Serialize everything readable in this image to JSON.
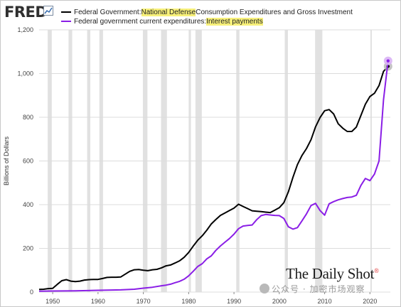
{
  "brand": {
    "logo_text": "FRED",
    "logo_icon": "chart-line-icon",
    "watermark_text": "公众号 · 加密市场观察",
    "watermark_icon": "wechat-icon",
    "publisher_text": "The Daily Shot",
    "publisher_mark": "®"
  },
  "legend": [
    {
      "prefix": "Federal Government: ",
      "highlight": "National Defense",
      "suffix": " Consumption Expenditures and Gross Investment",
      "color": "#000000"
    },
    {
      "prefix": "Federal government current expenditures: ",
      "highlight": "Interest payments",
      "suffix": "",
      "color": "#8a1ee6"
    }
  ],
  "chart_data": {
    "type": "line",
    "title": "",
    "xlabel": "",
    "ylabel": "Billions of Dollars",
    "xlim": [
      1947,
      2024.5
    ],
    "ylim": [
      0,
      1200
    ],
    "x_ticks": [
      1950,
      1960,
      1970,
      1980,
      1990,
      2000,
      2010,
      2020
    ],
    "y_ticks": [
      0,
      200,
      400,
      600,
      800,
      1000,
      1200
    ],
    "y_tick_labels": [
      "0",
      "200",
      "400",
      "600",
      "800",
      "1,000",
      "1,200"
    ],
    "grid": "horizontal",
    "legend_position": "top-left",
    "recessions": [
      [
        1948.9,
        1949.8
      ],
      [
        1953.5,
        1954.3
      ],
      [
        1957.6,
        1958.3
      ],
      [
        1960.3,
        1961.1
      ],
      [
        1969.9,
        1970.9
      ],
      [
        1973.9,
        1975.2
      ],
      [
        1980.0,
        1980.5
      ],
      [
        1981.5,
        1982.9
      ],
      [
        1990.5,
        1991.2
      ],
      [
        2001.2,
        2001.9
      ],
      [
        2007.9,
        2009.5
      ],
      [
        2020.1,
        2020.4
      ]
    ],
    "series": [
      {
        "name": "Federal Government: National Defense Consumption Expenditures and Gross Investment",
        "color": "#000000",
        "points": [
          [
            1947,
            12
          ],
          [
            1948,
            13
          ],
          [
            1949,
            16
          ],
          [
            1950,
            17
          ],
          [
            1951,
            35
          ],
          [
            1952,
            52
          ],
          [
            1953,
            57
          ],
          [
            1954,
            50
          ],
          [
            1955,
            48
          ],
          [
            1956,
            50
          ],
          [
            1957,
            55
          ],
          [
            1958,
            57
          ],
          [
            1959,
            58
          ],
          [
            1960,
            58
          ],
          [
            1961,
            62
          ],
          [
            1962,
            67
          ],
          [
            1963,
            68
          ],
          [
            1964,
            68
          ],
          [
            1965,
            69
          ],
          [
            1966,
            82
          ],
          [
            1967,
            95
          ],
          [
            1968,
            102
          ],
          [
            1969,
            103
          ],
          [
            1970,
            100
          ],
          [
            1971,
            98
          ],
          [
            1972,
            102
          ],
          [
            1973,
            104
          ],
          [
            1974,
            111
          ],
          [
            1975,
            120
          ],
          [
            1976,
            124
          ],
          [
            1977,
            133
          ],
          [
            1978,
            143
          ],
          [
            1979,
            159
          ],
          [
            1980,
            181
          ],
          [
            1981,
            210
          ],
          [
            1982,
            237
          ],
          [
            1983,
            258
          ],
          [
            1984,
            283
          ],
          [
            1985,
            312
          ],
          [
            1986,
            332
          ],
          [
            1987,
            351
          ],
          [
            1988,
            362
          ],
          [
            1989,
            373
          ],
          [
            1990,
            384
          ],
          [
            1991,
            402
          ],
          [
            1992,
            392
          ],
          [
            1993,
            382
          ],
          [
            1994,
            372
          ],
          [
            1995,
            370
          ],
          [
            1996,
            368
          ],
          [
            1997,
            366
          ],
          [
            1998,
            364
          ],
          [
            1999,
            375
          ],
          [
            2000,
            386
          ],
          [
            2001,
            409
          ],
          [
            2002,
            459
          ],
          [
            2003,
            525
          ],
          [
            2004,
            583
          ],
          [
            2005,
            625
          ],
          [
            2006,
            657
          ],
          [
            2007,
            698
          ],
          [
            2008,
            756
          ],
          [
            2009,
            799
          ],
          [
            2010,
            830
          ],
          [
            2011,
            835
          ],
          [
            2012,
            815
          ],
          [
            2013,
            770
          ],
          [
            2014,
            750
          ],
          [
            2015,
            735
          ],
          [
            2016,
            735
          ],
          [
            2017,
            755
          ],
          [
            2018,
            808
          ],
          [
            2019,
            860
          ],
          [
            2020,
            895
          ],
          [
            2021,
            910
          ],
          [
            2022,
            945
          ],
          [
            2023,
            1010
          ],
          [
            2024,
            1033
          ]
        ]
      },
      {
        "name": "Federal government current expenditures: Interest payments",
        "color": "#8a1ee6",
        "points": [
          [
            1947,
            4
          ],
          [
            1950,
            5
          ],
          [
            1955,
            6
          ],
          [
            1960,
            8
          ],
          [
            1965,
            10
          ],
          [
            1968,
            13
          ],
          [
            1970,
            18
          ],
          [
            1972,
            22
          ],
          [
            1974,
            29
          ],
          [
            1975,
            32
          ],
          [
            1976,
            36
          ],
          [
            1977,
            43
          ],
          [
            1978,
            49
          ],
          [
            1979,
            59
          ],
          [
            1980,
            74
          ],
          [
            1981,
            95
          ],
          [
            1982,
            117
          ],
          [
            1983,
            130
          ],
          [
            1984,
            152
          ],
          [
            1985,
            166
          ],
          [
            1986,
            191
          ],
          [
            1987,
            211
          ],
          [
            1988,
            228
          ],
          [
            1989,
            245
          ],
          [
            1990,
            265
          ],
          [
            1991,
            290
          ],
          [
            1992,
            302
          ],
          [
            1993,
            305
          ],
          [
            1994,
            307
          ],
          [
            1995,
            331
          ],
          [
            1996,
            350
          ],
          [
            1997,
            355
          ],
          [
            1998,
            353
          ],
          [
            1999,
            351
          ],
          [
            2000,
            350
          ],
          [
            2001,
            337
          ],
          [
            2002,
            299
          ],
          [
            2003,
            288
          ],
          [
            2004,
            295
          ],
          [
            2005,
            326
          ],
          [
            2006,
            358
          ],
          [
            2007,
            396
          ],
          [
            2008,
            406
          ],
          [
            2009,
            373
          ],
          [
            2010,
            352
          ],
          [
            2011,
            404
          ],
          [
            2012,
            414
          ],
          [
            2013,
            422
          ],
          [
            2014,
            428
          ],
          [
            2015,
            433
          ],
          [
            2016,
            435
          ],
          [
            2017,
            443
          ],
          [
            2018,
            488
          ],
          [
            2019,
            520
          ],
          [
            2020,
            510
          ],
          [
            2021,
            540
          ],
          [
            2022,
            600
          ],
          [
            2023,
            880
          ],
          [
            2024,
            1058
          ]
        ]
      }
    ]
  }
}
